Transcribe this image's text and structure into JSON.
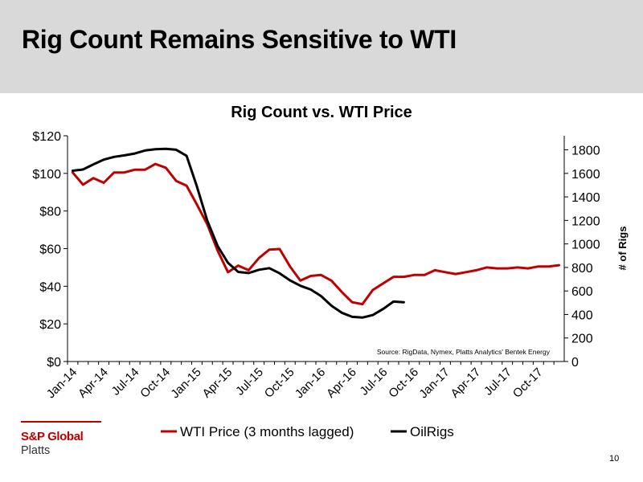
{
  "slide": {
    "title": "Rig Count Remains Sensitive to WTI",
    "page_number": "10"
  },
  "logo": {
    "brand": "S&P Global",
    "sub": "Platts"
  },
  "colors": {
    "header_band": "#d9d9d9",
    "wti_line": "#c00000",
    "rigs_line": "#000000",
    "brand_red": "#c00000"
  },
  "chart_data": {
    "type": "line",
    "title": "Rig Count vs. WTI Price",
    "xlabel": "",
    "ylabel": "",
    "y2label": "# of Rigs",
    "source_note": "Source: RigData, Nymex, Platts Analytics' Bentek Energy",
    "categories": [
      "Jan-14",
      "Feb-14",
      "Mar-14",
      "Apr-14",
      "May-14",
      "Jun-14",
      "Jul-14",
      "Aug-14",
      "Sep-14",
      "Oct-14",
      "Nov-14",
      "Dec-14",
      "Jan-15",
      "Feb-15",
      "Mar-15",
      "Apr-15",
      "May-15",
      "Jun-15",
      "Jul-15",
      "Aug-15",
      "Sep-15",
      "Oct-15",
      "Nov-15",
      "Dec-15",
      "Jan-16",
      "Feb-16",
      "Mar-16",
      "Apr-16",
      "May-16",
      "Jun-16",
      "Jul-16",
      "Aug-16",
      "Sep-16",
      "Oct-16",
      "Nov-16",
      "Dec-16",
      "Jan-17",
      "Feb-17",
      "Mar-17",
      "Apr-17",
      "May-17",
      "Jun-17",
      "Jul-17",
      "Aug-17",
      "Sep-17",
      "Oct-17",
      "Nov-17",
      "Dec-17"
    ],
    "x_tick_labels": [
      "Jan-14",
      "Apr-14",
      "Jul-14",
      "Oct-14",
      "Jan-15",
      "Apr-15",
      "Jul-15",
      "Oct-15",
      "Jan-16",
      "Apr-16",
      "Jul-16",
      "Oct-16",
      "Jan-17",
      "Apr-17",
      "Jul-17",
      "Oct-17"
    ],
    "y_left": {
      "lim": [
        0,
        120
      ],
      "ticks": [
        0,
        20,
        40,
        60,
        80,
        100,
        120
      ],
      "tick_labels": [
        "$0",
        "$20",
        "$40",
        "$60",
        "$80",
        "$100",
        "$120"
      ]
    },
    "y_right": {
      "lim": [
        0,
        1920
      ],
      "ticks": [
        0,
        200,
        400,
        600,
        800,
        1000,
        1200,
        1400,
        1600,
        1800
      ],
      "tick_labels": [
        "0",
        "200",
        "400",
        "600",
        "800",
        "1000",
        "1200",
        "1400",
        "1600",
        "1800"
      ]
    },
    "grid": false,
    "legend_position": "bottom",
    "series": [
      {
        "name": "WTI Price (3 months lagged)",
        "axis": "left",
        "color": "#c00000",
        "values": [
          100.5,
          94,
          97.5,
          95,
          100.5,
          100.5,
          102,
          102,
          105,
          103,
          96,
          93.5,
          83.5,
          73,
          59,
          47.5,
          51,
          48.5,
          55,
          59.5,
          59.8,
          50.5,
          43,
          45.5,
          46,
          43,
          37,
          31.5,
          30.5,
          38,
          41.5,
          45,
          45,
          46,
          46,
          48.5,
          47.5,
          46.5,
          47.5,
          48.5,
          50,
          49.5,
          49.5,
          50,
          49.5,
          50.5,
          50.5,
          51.2
        ]
      },
      {
        "name": "OilRigs",
        "axis": "right",
        "color": "#000000",
        "values": [
          1623,
          1633,
          1677,
          1717,
          1740,
          1753,
          1769,
          1795,
          1806,
          1809,
          1801,
          1750,
          1490,
          1200,
          983,
          840,
          762,
          752,
          780,
          794,
          750,
          690,
          644,
          612,
          557,
          475,
          415,
          380,
          374,
          395,
          447,
          510,
          504,
          null,
          null,
          null,
          null,
          null,
          null,
          null,
          null,
          null,
          null,
          null,
          null,
          null,
          null,
          null
        ]
      }
    ]
  }
}
